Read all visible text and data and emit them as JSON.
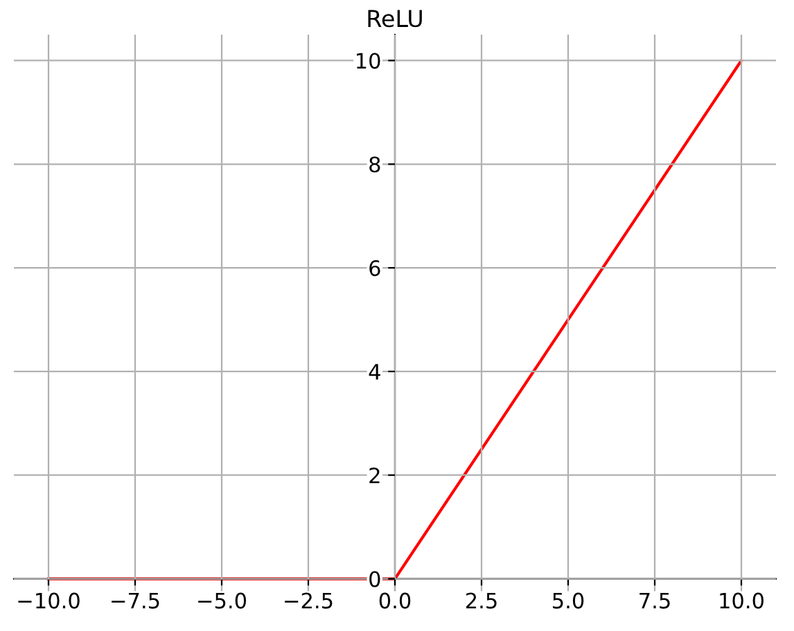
{
  "chart_data": {
    "type": "line",
    "title": "ReLU",
    "x": [
      -10,
      0,
      10
    ],
    "series": [
      {
        "color": "#ff0000",
        "values": [
          0,
          0,
          10
        ]
      }
    ],
    "xlim": [
      -11,
      11
    ],
    "xticks": [
      {
        "value": -10,
        "label": "−10.0"
      },
      {
        "value": -7.5,
        "label": "−7.5"
      },
      {
        "value": -5,
        "label": "−5.0"
      },
      {
        "value": -2.5,
        "label": "−2.5"
      },
      {
        "value": 0,
        "label": "0.0"
      },
      {
        "value": 2.5,
        "label": "2.5"
      },
      {
        "value": 5,
        "label": "5.0"
      },
      {
        "value": 7.5,
        "label": "7.5"
      },
      {
        "value": 10,
        "label": "10.0"
      }
    ],
    "ylim": [
      -0.5,
      10.5
    ],
    "yticks": [
      0,
      2,
      4,
      6,
      8,
      10
    ],
    "grid": true,
    "line_style": "solid",
    "marker": "none"
  }
}
